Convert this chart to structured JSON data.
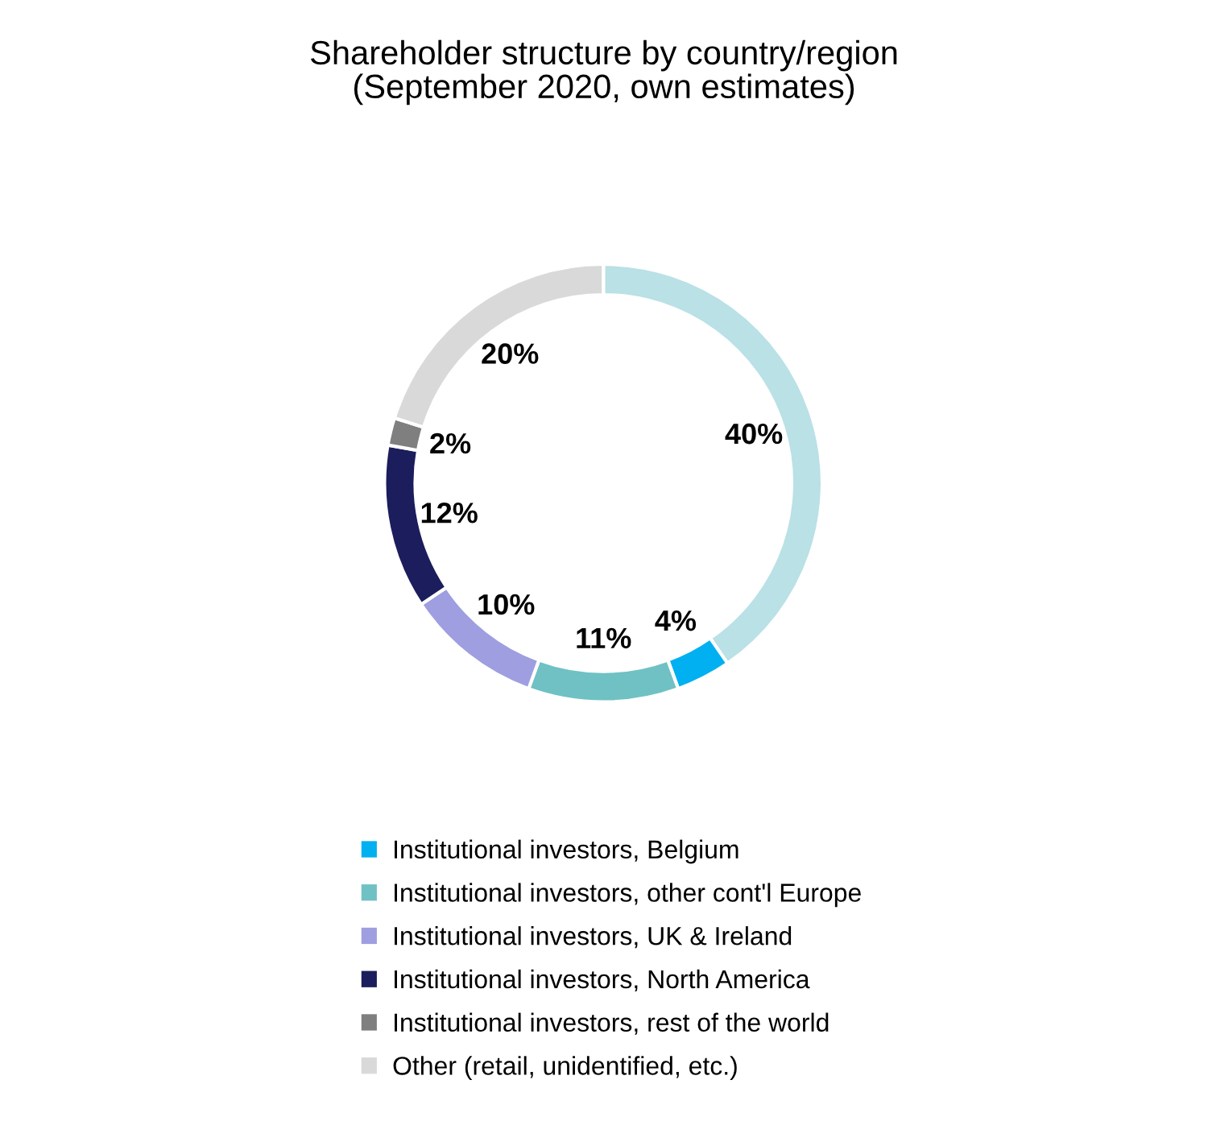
{
  "chart_data": {
    "type": "donut",
    "title": "Shareholder structure by country/region\n(September 2020, own estimates)",
    "categories": [
      null,
      "Institutional investors, Belgium",
      "Institutional investors, other cont'l Europe",
      "Institutional investors, UK & Ireland",
      "Institutional investors, North America",
      "Institutional investors, rest of the world",
      "Other (retail, unidentified, etc.)"
    ],
    "values": [
      40,
      4,
      11,
      10,
      12,
      2,
      20
    ],
    "value_labels": [
      "40%",
      "4%",
      "11%",
      "10%",
      "12%",
      "2%",
      "20%"
    ],
    "colors": [
      "#b9e1e6",
      "#00b0f0",
      "#6fc1c4",
      "#9e9ee0",
      "#1b1d5c",
      "#7f7f7f",
      "#d9d9d9"
    ],
    "legend": "bottom"
  }
}
